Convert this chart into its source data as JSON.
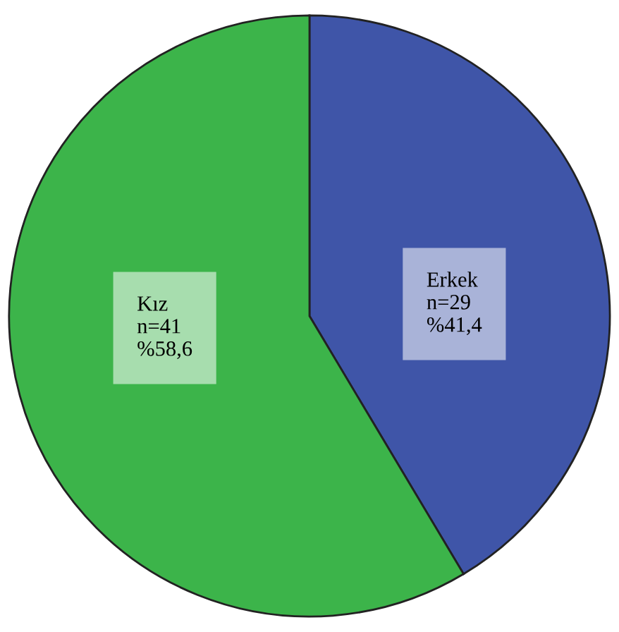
{
  "chart_data": {
    "type": "pie",
    "categories": [
      "Erkek",
      "Kız"
    ],
    "values": [
      29,
      41
    ],
    "colors": [
      "#3f55a8",
      "#3cb44a"
    ],
    "value_labels": [
      "n=29\n%41,4",
      "n=41\n%58,6"
    ]
  }
}
